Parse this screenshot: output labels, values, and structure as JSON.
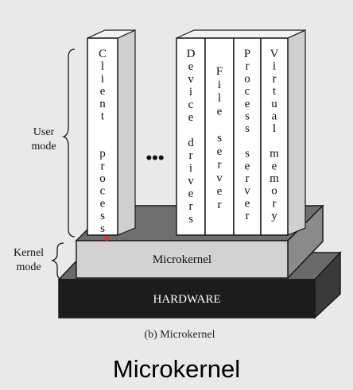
{
  "labels": {
    "user_mode": [
      "User",
      "mode"
    ],
    "kernel_mode": [
      "Kernel",
      "mode"
    ],
    "microkernel": "Microkernel",
    "hardware": "HARDWARE",
    "caption": "(b) Microkernel",
    "title": "Microkernel",
    "ellipsis": "•••"
  },
  "columns": [
    {
      "id": "client-process",
      "letters": [
        "C",
        "l",
        "i",
        "e",
        "n",
        "t",
        "",
        "",
        "p",
        "r",
        "o",
        "c",
        "e",
        "s",
        "s"
      ]
    },
    {
      "id": "device-drivers",
      "letters": [
        "D",
        "e",
        "v",
        "i",
        "c",
        "e",
        "",
        "d",
        "r",
        "i",
        "v",
        "e",
        "r",
        "s"
      ]
    },
    {
      "id": "file-server",
      "letters": [
        "F",
        "i",
        "l",
        "e",
        "",
        "s",
        "e",
        "r",
        "v",
        "e",
        "r"
      ]
    },
    {
      "id": "process-server",
      "letters": [
        "P",
        "r",
        "o",
        "c",
        "e",
        "s",
        "s",
        "",
        "s",
        "e",
        "r",
        "v",
        "e",
        "r"
      ]
    },
    {
      "id": "virtual-memory",
      "letters": [
        "V",
        "i",
        "r",
        "t",
        "u",
        "a",
        "l",
        "",
        "m",
        "e",
        "m",
        "o",
        "r",
        "y"
      ]
    }
  ],
  "colors": {
    "background": "#e9e9e9",
    "hardware_fill": "#1c1c1c",
    "hardware_text": "#ffffff",
    "kernel_fill": "#d2d2d2",
    "base_fill": "#6e6e6e",
    "column_fill": "#ffffff",
    "outline": "#1a1a1a",
    "marker": "#e0312b"
  }
}
